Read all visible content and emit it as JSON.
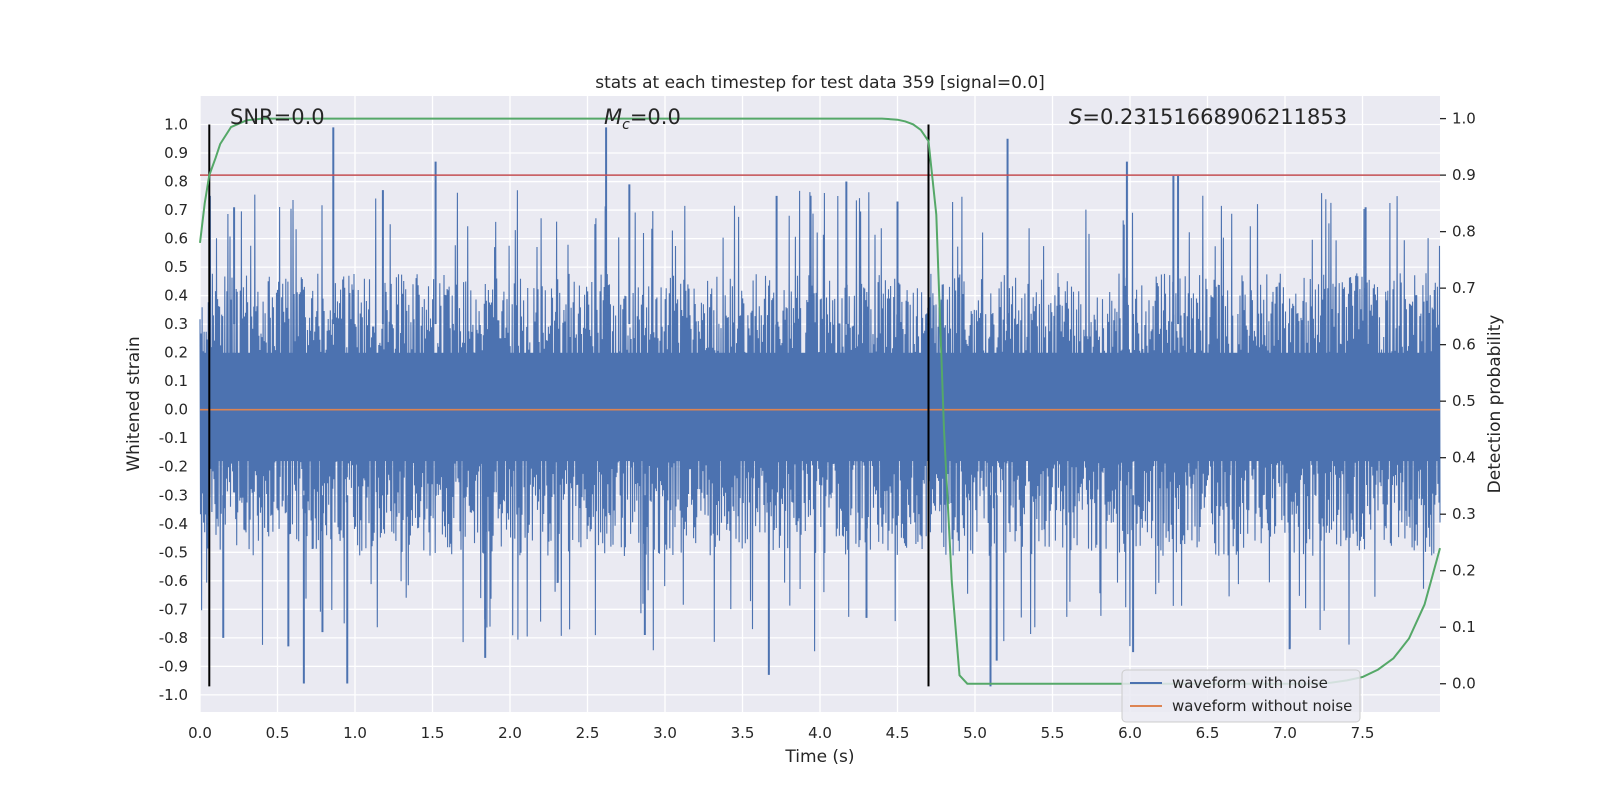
{
  "chart_data": {
    "type": "line",
    "title": "stats at each timestep for test data 359 [signal=0.0]",
    "xlabel": "Time (s)",
    "ylabel": "Whitened strain",
    "y2label": "Detection probability",
    "xlim": [
      0.0,
      8.0
    ],
    "ylim": [
      -1.06,
      1.1
    ],
    "y2lim": [
      -0.05,
      1.04
    ],
    "x_ticks": [
      0.0,
      0.5,
      1.0,
      1.5,
      2.0,
      2.5,
      3.0,
      3.5,
      4.0,
      4.5,
      5.0,
      5.5,
      6.0,
      6.5,
      7.0,
      7.5
    ],
    "x_tick_labels": [
      "0.0",
      "0.5",
      "1.0",
      "1.5",
      "2.0",
      "2.5",
      "3.0",
      "3.5",
      "4.0",
      "4.5",
      "5.0",
      "5.5",
      "6.0",
      "6.5",
      "7.0",
      "7.5"
    ],
    "y_ticks": [
      1.0,
      0.9,
      0.8,
      0.7,
      0.6,
      0.5,
      0.4,
      0.3,
      0.2,
      0.1,
      0.0,
      -0.1,
      -0.2,
      -0.3,
      -0.4,
      -0.5,
      -0.6,
      -0.7,
      -0.8,
      -0.9,
      -1.0
    ],
    "y_tick_labels": [
      "1.0",
      "0.9",
      "0.8",
      "0.7",
      "0.6",
      "0.5",
      "0.4",
      "0.3",
      "0.2",
      "0.1",
      "0.0",
      "-0.1",
      "-0.2",
      "-0.3",
      "-0.4",
      "-0.5",
      "-0.6",
      "-0.7",
      "-0.8",
      "-0.9",
      "-1.0"
    ],
    "y2_ticks": [
      1.0,
      0.9,
      0.8,
      0.7,
      0.6,
      0.5,
      0.4,
      0.3,
      0.2,
      0.1,
      0.0
    ],
    "y2_tick_labels": [
      "1.0",
      "0.9",
      "0.8",
      "0.7",
      "0.6",
      "0.5",
      "0.4",
      "0.3",
      "0.2",
      "0.1",
      "0.0"
    ],
    "grid": true,
    "legend_position": "lower-right",
    "annotations": {
      "snr": "SNR=0.0",
      "mc_symbol": "M",
      "mc_sub": "c",
      "mc_value": "=0.0",
      "s_symbol": "S",
      "s_value": "=0.23151668906211853"
    },
    "series": [
      {
        "name": "waveform with noise",
        "color": "#4c72b0",
        "kind": "noise",
        "band_upper": 0.42,
        "band_lower": -0.45,
        "spikes_up": [
          [
            0.86,
            0.99
          ],
          [
            1.52,
            0.87
          ],
          [
            2.62,
            0.99
          ],
          [
            5.21,
            0.95
          ],
          [
            5.98,
            0.87
          ],
          [
            6.28,
            0.82
          ],
          [
            6.31,
            0.82
          ],
          [
            4.17,
            0.8
          ],
          [
            1.18,
            0.77
          ],
          [
            2.77,
            0.79
          ],
          [
            0.22,
            0.71
          ],
          [
            3.72,
            0.75
          ],
          [
            4.5,
            0.73
          ],
          [
            7.52,
            0.71
          ]
        ],
        "spikes_down": [
          [
            0.67,
            -0.96
          ],
          [
            0.95,
            -0.96
          ],
          [
            5.1,
            -0.97
          ],
          [
            3.67,
            -0.93
          ],
          [
            5.14,
            -0.88
          ],
          [
            1.84,
            -0.87
          ],
          [
            0.57,
            -0.83
          ],
          [
            0.15,
            -0.8
          ],
          [
            0.79,
            -0.78
          ],
          [
            7.03,
            -0.84
          ],
          [
            6.02,
            -0.85
          ],
          [
            2.87,
            -0.79
          ],
          [
            4.3,
            -0.73
          ]
        ]
      },
      {
        "name": "waveform without noise",
        "color": "#dd8452",
        "kind": "flat",
        "x": [
          0.0,
          8.0
        ],
        "y": [
          0.0,
          0.0
        ]
      },
      {
        "name": "detection probability",
        "color": "#55a868",
        "axis": "right",
        "x": [
          0.0,
          0.03,
          0.06,
          0.1,
          0.13,
          0.2,
          0.3,
          0.4,
          0.6,
          1.0,
          2.0,
          3.0,
          4.0,
          4.4,
          4.5,
          4.55,
          4.6,
          4.65,
          4.7,
          4.75,
          4.8,
          4.85,
          4.9,
          4.95,
          5.0,
          5.5,
          6.0,
          6.5,
          7.0,
          7.2,
          7.3,
          7.4,
          7.5,
          7.6,
          7.7,
          7.8,
          7.9,
          7.95,
          8.0
        ],
        "y": [
          0.78,
          0.85,
          0.9,
          0.93,
          0.955,
          0.985,
          0.997,
          1.0,
          1.0,
          1.0,
          1.0,
          1.0,
          1.0,
          1.0,
          0.998,
          0.995,
          0.99,
          0.98,
          0.96,
          0.83,
          0.45,
          0.18,
          0.015,
          0.0,
          0.0,
          0.0,
          0.0,
          0.0,
          0.0,
          0.0,
          0.002,
          0.006,
          0.012,
          0.025,
          0.045,
          0.08,
          0.14,
          0.19,
          0.24
        ]
      }
    ],
    "hlines": [
      {
        "axis": "right",
        "y": 0.9,
        "color": "#c44e52"
      }
    ],
    "vlines": [
      {
        "x": 0.06,
        "y_from": -0.97,
        "y_to": 1.0,
        "color": "#000000"
      },
      {
        "x": 4.7,
        "y_from": -0.97,
        "y_to": 1.0,
        "color": "#000000"
      }
    ]
  }
}
